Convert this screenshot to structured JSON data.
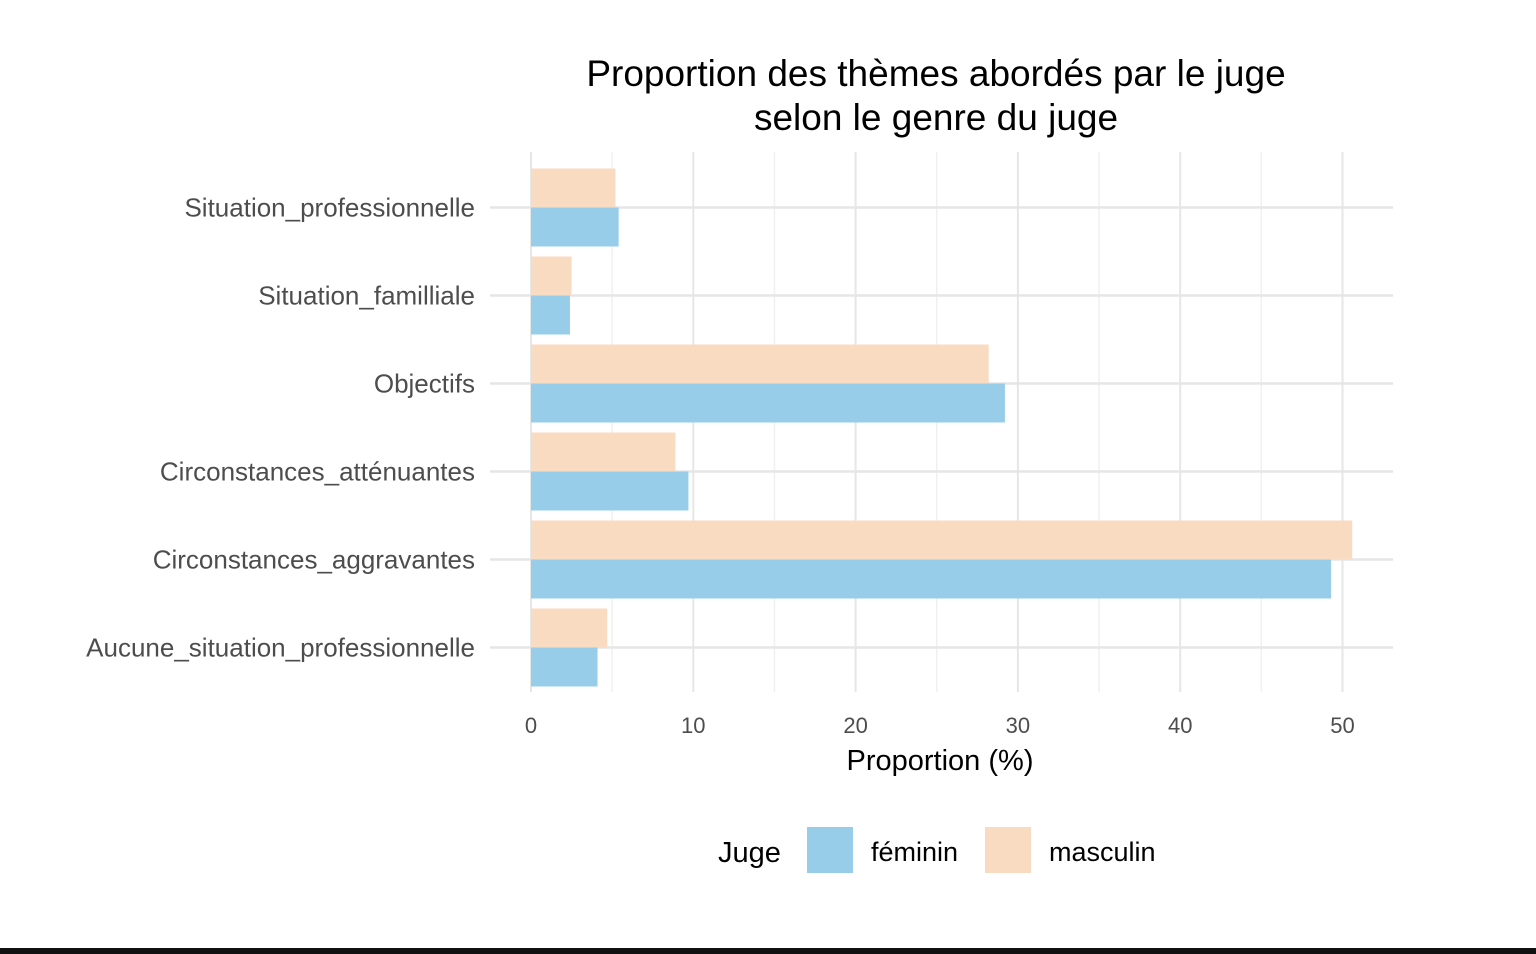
{
  "chart_data": {
    "type": "bar",
    "orientation": "horizontal",
    "title": "Proportion des thèmes abordés par le juge\nselon le genre du juge",
    "xlabel": "Proportion (%)",
    "ylabel": "",
    "xlim": [
      0,
      53
    ],
    "x_ticks": [
      0,
      10,
      20,
      30,
      40,
      50
    ],
    "grid": true,
    "legend_title": "Juge",
    "legend_position": "bottom",
    "categories": [
      "Situation_professionnelle",
      "Situation_familliale",
      "Objectifs",
      "Circonstances_atténuantes",
      "Circonstances_aggravantes",
      "Aucune_situation_professionnelle"
    ],
    "series": [
      {
        "name": "féminin",
        "color": "#97cde9",
        "values": [
          5.4,
          2.4,
          29.2,
          9.7,
          49.3,
          4.1
        ]
      },
      {
        "name": "masculin",
        "color": "#f8dbc1",
        "values": [
          5.2,
          2.5,
          28.2,
          8.9,
          50.6,
          4.7
        ]
      }
    ]
  }
}
